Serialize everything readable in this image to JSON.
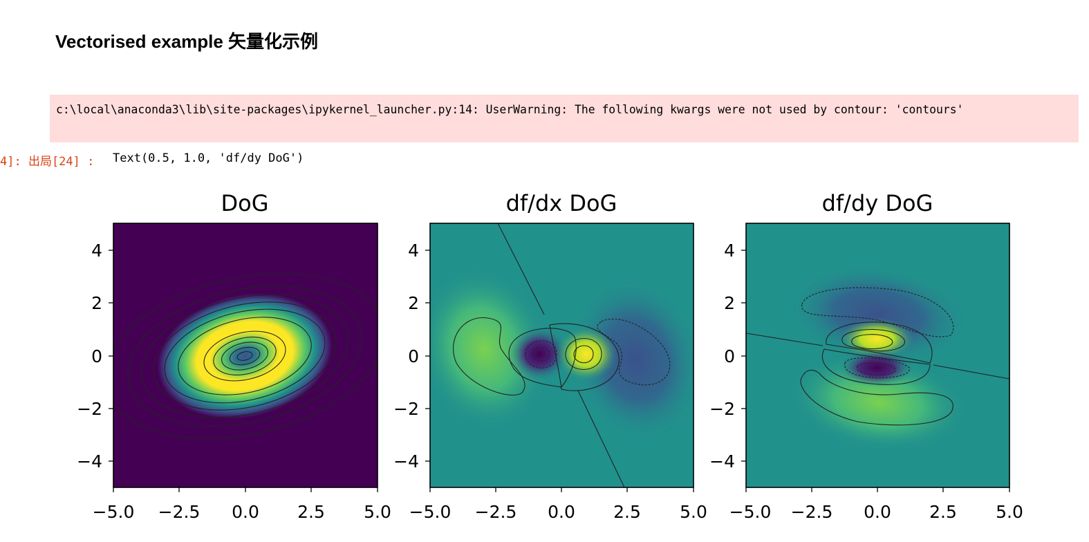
{
  "notebook": {
    "heading": "Vectorised example 矢量化示例",
    "warning_text": "c:\\local\\anaconda3\\lib\\site-packages\\ipykernel_launcher.py:14: UserWarning: The following kwargs were not used by contour: 'contours'",
    "output_prompt": "4]: 出局[24] :",
    "output_text": "Text(0.5, 1.0, 'df/dy DoG')"
  },
  "colors": {
    "warning_bg": "#ffdddd",
    "prompt": "#d84315"
  },
  "chart_data": [
    {
      "type": "heatmap",
      "title": "DoG",
      "xlim": [
        -5,
        5
      ],
      "ylim": [
        -5,
        5
      ],
      "xticks": [
        "−5.0",
        "−2.5",
        "0.0",
        "2.5",
        "5.0"
      ],
      "yticks": [
        "−4",
        "−2",
        "0",
        "2",
        "4"
      ],
      "colormap": "viridis",
      "overlay": "contour"
    },
    {
      "type": "heatmap",
      "title": "df/dx DoG",
      "xlim": [
        -5,
        5
      ],
      "ylim": [
        -5,
        5
      ],
      "xticks": [
        "−5.0",
        "−2.5",
        "0.0",
        "2.5",
        "5.0"
      ],
      "yticks": [
        "−4",
        "−2",
        "0",
        "2",
        "4"
      ],
      "colormap": "viridis",
      "overlay": "contour"
    },
    {
      "type": "heatmap",
      "title": "df/dy DoG",
      "xlim": [
        -5,
        5
      ],
      "ylim": [
        -5,
        5
      ],
      "xticks": [
        "−5.0",
        "−2.5",
        "0.0",
        "2.5",
        "5.0"
      ],
      "yticks": [
        "−4",
        "−2",
        "0",
        "2",
        "4"
      ],
      "colormap": "viridis",
      "overlay": "contour"
    }
  ]
}
